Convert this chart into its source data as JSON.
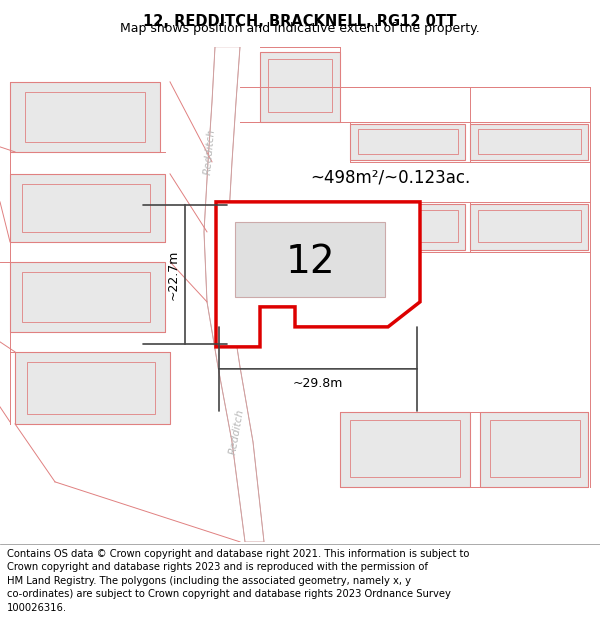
{
  "title": "12, REDDITCH, BRACKNELL, RG12 0TT",
  "subtitle": "Map shows position and indicative extent of the property.",
  "footer": "Contains OS data © Crown copyright and database right 2021. This information is subject to Crown copyright and database rights 2023 and is reproduced with the permission of\nHM Land Registry. The polygons (including the associated geometry, namely x, y\nco-ordinates) are subject to Crown copyright and database rights 2023 Ordnance Survey\n100026316.",
  "map_bg": "#f2f2f2",
  "parcel_fill": "#e8e8e8",
  "parcel_edge": "#e08080",
  "road_fill": "#ffffff",
  "road_edge": "#d0a0a0",
  "highlight_fill": "#ffffff",
  "highlight_edge": "#dd0000",
  "area_label": "~498m²/~0.123ac.",
  "number_label": "12",
  "dim_width": "~29.8m",
  "dim_height": "~22.7m",
  "title_fontsize": 10.5,
  "subtitle_fontsize": 9,
  "footer_fontsize": 7.2,
  "road_label_color": "#b8b8b8",
  "dim_line_color": "#444444"
}
